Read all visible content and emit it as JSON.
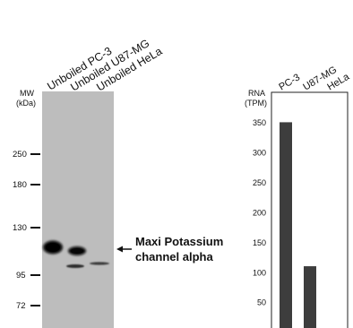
{
  "blot": {
    "lane_labels": [
      "Unboiled PC-3",
      "Unboiled U87-MG",
      "Unboiled HeLa"
    ],
    "mw_label_line1": "MW",
    "mw_label_line2": "(kDa)",
    "mw_markers": [
      "250",
      "180",
      "130",
      "95",
      "72"
    ],
    "annotation_line1": "Maxi Potassium",
    "annotation_line2": "channel alpha"
  },
  "chart_data": {
    "type": "bar",
    "categories": [
      "PC-3",
      "U87-MG",
      "HeLa"
    ],
    "values": [
      350,
      110,
      0
    ],
    "ylabel_line1": "RNA",
    "ylabel_line2": "(TPM)",
    "ylim": [
      0,
      380
    ],
    "yticks": [
      50,
      100,
      150,
      200,
      250,
      300,
      350
    ],
    "bar_color": "#3d3d3d",
    "grid": false
  }
}
